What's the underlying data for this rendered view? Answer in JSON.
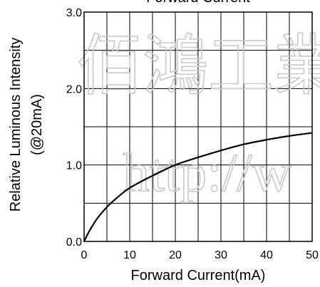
{
  "chart_data": {
    "type": "line",
    "title": "Forward Current",
    "xlabel": "Forward Current(mA)",
    "ylabel_lines": [
      "Relative Luminous Intensity",
      "(@20mA)"
    ],
    "xlim": [
      0,
      50
    ],
    "ylim": [
      0,
      3.0
    ],
    "x_ticks": [
      0,
      10,
      20,
      30,
      40,
      50
    ],
    "x_tick_labels": [
      "0",
      "10",
      "20",
      "30",
      "40",
      "50"
    ],
    "y_ticks": [
      0,
      1.0,
      2.0,
      3.0
    ],
    "y_tick_labels": [
      "0.0",
      "1.0",
      "2.0",
      "3.0"
    ],
    "grid": true,
    "series": [
      {
        "x": [
          0,
          1,
          2,
          3,
          5,
          7,
          10,
          15,
          20,
          25,
          30,
          35,
          40,
          45,
          50
        ],
        "y": [
          0,
          0.12,
          0.22,
          0.31,
          0.45,
          0.56,
          0.7,
          0.86,
          1.0,
          1.1,
          1.19,
          1.27,
          1.33,
          1.38,
          1.42
        ],
        "color": "#000000"
      }
    ],
    "watermark": [
      "佰鴻工業",
      "http://w"
    ]
  }
}
